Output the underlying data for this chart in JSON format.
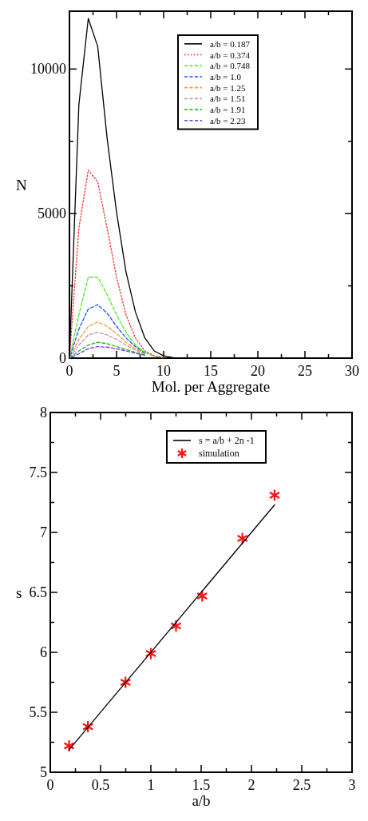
{
  "chart_data": [
    {
      "type": "line",
      "xlabel": "Mol. per Aggregate",
      "ylabel": "N",
      "xlim": [
        0,
        30
      ],
      "ylim": [
        0,
        12000
      ],
      "xticks": [
        0,
        {
          "value": 2.5,
          "label": null
        },
        5,
        {
          "value": 7.5,
          "label": null
        },
        10,
        {
          "value": 12.5,
          "label": null
        },
        15,
        {
          "value": 17.5,
          "label": null
        },
        20,
        {
          "value": 22.5,
          "label": null
        },
        25,
        {
          "value": 27.5,
          "label": null
        },
        30
      ],
      "yticks": [
        0,
        {
          "value": 2500,
          "label": null
        },
        5000,
        {
          "value": 7500,
          "label": null
        },
        10000
      ],
      "grid": false,
      "legend": "top right",
      "marker": "none",
      "x": [
        0,
        1,
        2,
        3,
        4,
        5,
        6,
        7,
        8,
        9,
        10,
        11,
        12,
        13,
        14,
        15
      ],
      "series": [
        {
          "name": "a/b = 0.187",
          "color": "#000000",
          "line_style": "solid",
          "values": [
            0,
            8760,
            11750,
            10780,
            7600,
            5050,
            2990,
            1600,
            700,
            250,
            80,
            20,
            0,
            0,
            0,
            0
          ]
        },
        {
          "name": "a/b = 0.374",
          "color": "#ff2222",
          "line_style": "dotted",
          "values": [
            0,
            4500,
            6500,
            6100,
            4500,
            2800,
            1500,
            700,
            250,
            80,
            20,
            null,
            null,
            null,
            null,
            null
          ]
        },
        {
          "name": "a/b = 0.748",
          "color": "#44ee22",
          "line_style": "dashed",
          "values": [
            0,
            1500,
            2800,
            2800,
            2200,
            1500,
            900,
            450,
            200,
            70,
            20,
            null,
            null,
            null,
            null,
            null
          ]
        },
        {
          "name": "a/b = 1.0",
          "color": "#1a4dff",
          "line_style": "dashed",
          "values": [
            0,
            1000,
            1700,
            1850,
            1550,
            1100,
            700,
            400,
            180,
            null,
            null,
            null,
            null,
            null,
            null,
            null
          ]
        },
        {
          "name": "a/b = 1.25",
          "color": "#ff9933",
          "line_style": "dashed",
          "values": [
            0,
            650,
            1100,
            1250,
            1100,
            850,
            550,
            330,
            160,
            null,
            null,
            null,
            null,
            null,
            null,
            null
          ]
        },
        {
          "name": "a/b = 1.51",
          "color": "#bb99aa",
          "line_style": "dashed",
          "values": [
            0,
            450,
            800,
            900,
            800,
            650,
            450,
            280,
            140,
            null,
            null,
            null,
            null,
            null,
            null,
            null
          ]
        },
        {
          "name": "a/b = 1.91",
          "color": "#22aa22",
          "line_style": "dashed",
          "values": [
            0,
            250,
            450,
            550,
            500,
            400,
            300,
            200,
            110,
            null,
            null,
            null,
            null,
            null,
            null,
            null
          ]
        },
        {
          "name": "a/b = 2.23",
          "color": "#7733ff",
          "line_style": "dashed",
          "values": [
            0,
            150,
            330,
            400,
            380,
            320,
            250,
            170,
            100,
            null,
            null,
            null,
            null,
            null,
            null,
            null
          ]
        }
      ]
    },
    {
      "type": "scatter",
      "xlabel": "a/b",
      "ylabel": "s",
      "xlim": [
        0,
        3
      ],
      "ylim": [
        5,
        8
      ],
      "xticks": [
        0,
        {
          "value": 0.25,
          "label": null
        },
        0.5,
        {
          "value": 0.75,
          "label": null
        },
        1,
        {
          "value": 1.25,
          "label": null
        },
        1.5,
        {
          "value": 1.75,
          "label": null
        },
        2,
        {
          "value": 2.25,
          "label": null
        },
        2.5,
        {
          "value": 2.75,
          "label": null
        },
        3
      ],
      "yticks": [
        5,
        {
          "value": 5.25,
          "label": null
        },
        5.5,
        {
          "value": 5.75,
          "label": null
        },
        6,
        {
          "value": 6.25,
          "label": null
        },
        6.5,
        {
          "value": 6.75,
          "label": null
        },
        7,
        {
          "value": 7.25,
          "label": null
        },
        7.5,
        {
          "value": 7.75,
          "label": null
        },
        8
      ],
      "grid": false,
      "legend": "top right",
      "marker": "cross",
      "series": [
        {
          "name": "s = a/b + 2n -1",
          "type": "line",
          "marker": "none",
          "color": "#000000",
          "line_style": "solid",
          "x": [
            0.187,
            2.23
          ],
          "values": [
            5.187,
            7.23
          ]
        },
        {
          "name": "simulation",
          "color": "#ff1111",
          "x": [
            0.187,
            0.374,
            0.748,
            1.0,
            1.25,
            1.51,
            1.91,
            2.23
          ],
          "values": [
            5.22,
            5.38,
            5.75,
            5.99,
            6.22,
            6.47,
            6.95,
            7.31
          ]
        }
      ]
    }
  ]
}
